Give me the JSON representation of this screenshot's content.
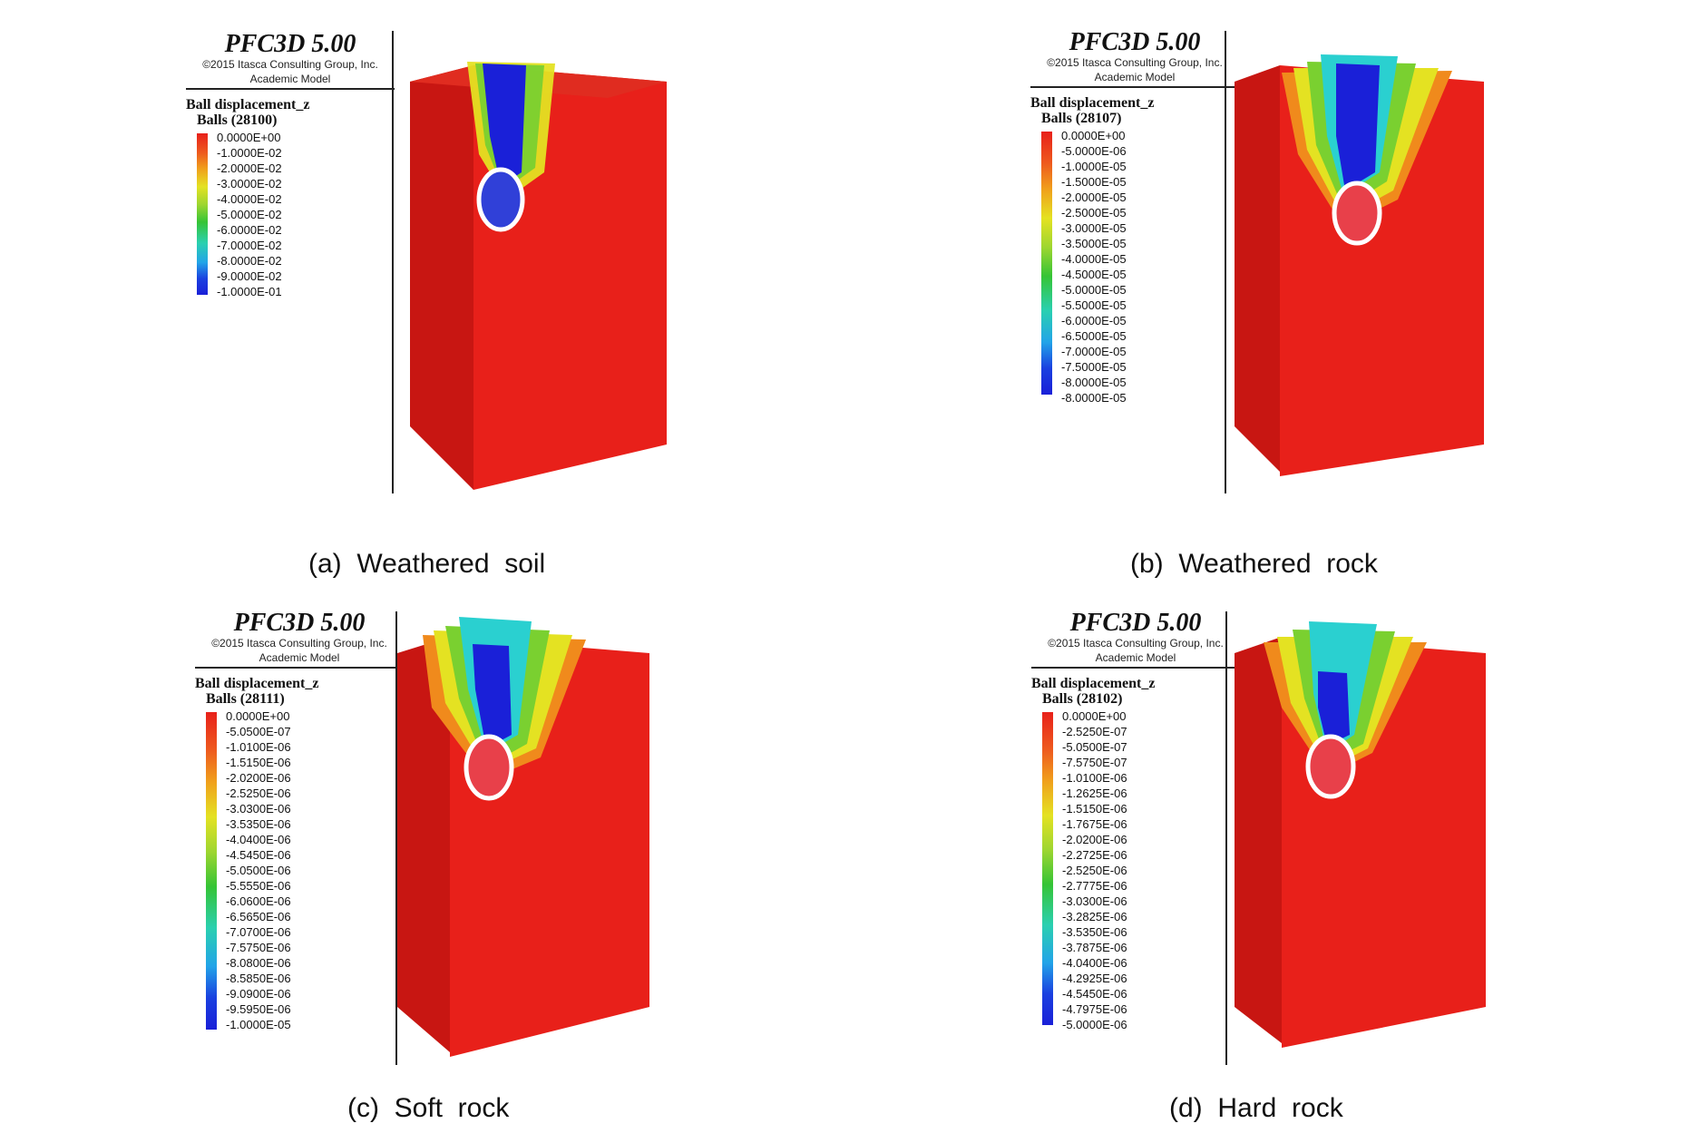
{
  "figure": {
    "software_title": "PFC3D 5.00",
    "copyright": "©2015 Itasca Consulting Group, Inc.",
    "model": "Academic Model",
    "variable": "Ball displacement_z",
    "panels": [
      {
        "id": "a",
        "caption": "(a)  Weathered  soil",
        "balls_label": "Balls (28100)",
        "scale_labels": [
          "0.0000E+00",
          "-1.0000E-02",
          "-2.0000E-02",
          "-3.0000E-02",
          "-4.0000E-02",
          "-5.0000E-02",
          "-6.0000E-02",
          "-7.0000E-02",
          "-8.0000E-02",
          "-9.0000E-02",
          "-1.0000E-01"
        ]
      },
      {
        "id": "b",
        "caption": "(b)  Weathered  rock",
        "balls_label": "Balls (28107)",
        "scale_labels": [
          "0.0000E+00",
          "-5.0000E-06",
          "-1.0000E-05",
          "-1.5000E-05",
          "-2.0000E-05",
          "-2.5000E-05",
          "-3.0000E-05",
          "-3.5000E-05",
          "-4.0000E-05",
          "-4.5000E-05",
          "-5.0000E-05",
          "-5.5000E-05",
          "-6.0000E-05",
          "-6.5000E-05",
          "-7.0000E-05",
          "-7.5000E-05",
          "-8.0000E-05",
          "-8.0000E-05"
        ]
      },
      {
        "id": "c",
        "caption": "(c)  Soft  rock",
        "balls_label": "Balls (28111)",
        "scale_labels": [
          "0.0000E+00",
          "-5.0500E-07",
          "-1.0100E-06",
          "-1.5150E-06",
          "-2.0200E-06",
          "-2.5250E-06",
          "-3.0300E-06",
          "-3.5350E-06",
          "-4.0400E-06",
          "-4.5450E-06",
          "-5.0500E-06",
          "-5.5550E-06",
          "-6.0600E-06",
          "-6.5650E-06",
          "-7.0700E-06",
          "-7.5750E-06",
          "-8.0800E-06",
          "-8.5850E-06",
          "-9.0900E-06",
          "-9.5950E-06",
          "-1.0000E-05"
        ]
      },
      {
        "id": "d",
        "caption": "(d)  Hard  rock",
        "balls_label": "Balls (28102)",
        "scale_labels": [
          "0.0000E+00",
          "-2.5250E-07",
          "-5.0500E-07",
          "-7.5750E-07",
          "-1.0100E-06",
          "-1.2625E-06",
          "-1.5150E-06",
          "-1.7675E-06",
          "-2.0200E-06",
          "-2.2725E-06",
          "-2.5250E-06",
          "-2.7775E-06",
          "-3.0300E-06",
          "-3.2825E-06",
          "-3.5350E-06",
          "-3.7875E-06",
          "-4.0400E-06",
          "-4.2925E-06",
          "-4.5450E-06",
          "-4.7975E-06",
          "-5.0000E-06"
        ]
      }
    ],
    "colors": {
      "ball_red": "#e8201a",
      "ball_dark_red": "#b10f0b",
      "ball_blue": "#1a20d8",
      "ball_cyan": "#22c8e8",
      "ball_green": "#35c435",
      "ball_yellow": "#e4e222",
      "ball_orange": "#f08a1c",
      "marker_ring": "#ffffff"
    }
  }
}
